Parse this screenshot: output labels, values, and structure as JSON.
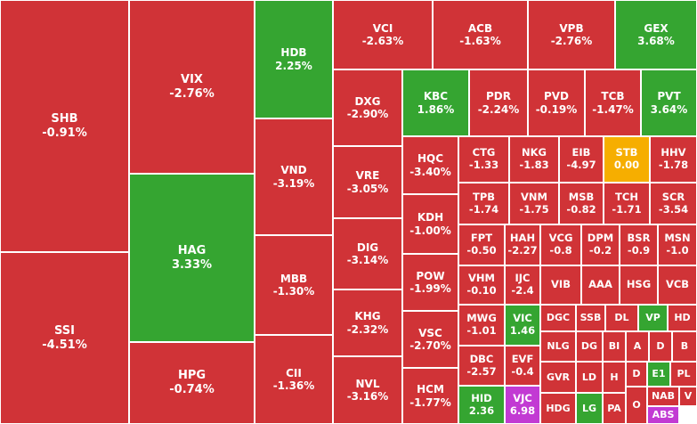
{
  "colors": {
    "down": "#d03337",
    "up": "#35a531",
    "flat": "#f6ae00",
    "ceiling": "#c23ad3"
  },
  "chart_data": {
    "type": "treemap",
    "tiles": [
      {
        "symbol": "SHB",
        "change": "-0.91%",
        "status": "down"
      },
      {
        "symbol": "SSI",
        "change": "-4.51%",
        "status": "down"
      },
      {
        "symbol": "VIX",
        "change": "-2.76%",
        "status": "down"
      },
      {
        "symbol": "HAG",
        "change": "3.33%",
        "status": "up"
      },
      {
        "symbol": "HPG",
        "change": "-0.74%",
        "status": "down"
      },
      {
        "symbol": "HDB",
        "change": "2.25%",
        "status": "up"
      },
      {
        "symbol": "VND",
        "change": "-3.19%",
        "status": "down"
      },
      {
        "symbol": "MBB",
        "change": "-1.30%",
        "status": "down"
      },
      {
        "symbol": "CII",
        "change": "-1.36%",
        "status": "down"
      },
      {
        "symbol": "VCI",
        "change": "-2.63%",
        "status": "down"
      },
      {
        "symbol": "ACB",
        "change": "-1.63%",
        "status": "down"
      },
      {
        "symbol": "VPB",
        "change": "-2.76%",
        "status": "down"
      },
      {
        "symbol": "GEX",
        "change": "3.68%",
        "status": "up"
      },
      {
        "symbol": "DXG",
        "change": "-2.90%",
        "status": "down"
      },
      {
        "symbol": "VRE",
        "change": "-3.05%",
        "status": "down"
      },
      {
        "symbol": "DIG",
        "change": "-3.14%",
        "status": "down"
      },
      {
        "symbol": "KHG",
        "change": "-2.32%",
        "status": "down"
      },
      {
        "symbol": "NVL",
        "change": "-3.16%",
        "status": "down"
      },
      {
        "symbol": "KBC",
        "change": "1.86%",
        "status": "up"
      },
      {
        "symbol": "PDR",
        "change": "-2.24%",
        "status": "down"
      },
      {
        "symbol": "PVD",
        "change": "-0.19%",
        "status": "down"
      },
      {
        "symbol": "TCB",
        "change": "-1.47%",
        "status": "down"
      },
      {
        "symbol": "PVT",
        "change": "3.64%",
        "status": "up"
      },
      {
        "symbol": "HQC",
        "change": "-3.40%",
        "status": "down"
      },
      {
        "symbol": "KDH",
        "change": "-1.00%",
        "status": "down"
      },
      {
        "symbol": "POW",
        "change": "-1.99%",
        "status": "down"
      },
      {
        "symbol": "VSC",
        "change": "-2.70%",
        "status": "down"
      },
      {
        "symbol": "HCM",
        "change": "-1.77%",
        "status": "down"
      },
      {
        "symbol": "CTG",
        "change": "-1.33",
        "status": "down"
      },
      {
        "symbol": "NKG",
        "change": "-1.83",
        "status": "down"
      },
      {
        "symbol": "EIB",
        "change": "-4.97",
        "status": "down"
      },
      {
        "symbol": "STB",
        "change": "0.00",
        "status": "flat"
      },
      {
        "symbol": "HHV",
        "change": "-1.78",
        "status": "down"
      },
      {
        "symbol": "TPB",
        "change": "-1.74",
        "status": "down"
      },
      {
        "symbol": "VNM",
        "change": "-1.75",
        "status": "down"
      },
      {
        "symbol": "MSB",
        "change": "-0.82",
        "status": "down"
      },
      {
        "symbol": "TCH",
        "change": "-1.71",
        "status": "down"
      },
      {
        "symbol": "SCR",
        "change": "-3.54",
        "status": "down"
      },
      {
        "symbol": "FPT",
        "change": "-0.50",
        "status": "down"
      },
      {
        "symbol": "HAH",
        "change": "-2.27",
        "status": "down"
      },
      {
        "symbol": "VCG",
        "change": "-0.8",
        "status": "down"
      },
      {
        "symbol": "DPM",
        "change": "-0.2",
        "status": "down"
      },
      {
        "symbol": "BSR",
        "change": "-0.9",
        "status": "down"
      },
      {
        "symbol": "MSN",
        "change": "-1.0",
        "status": "down"
      },
      {
        "symbol": "VHM",
        "change": "-0.10",
        "status": "down"
      },
      {
        "symbol": "IJC",
        "change": "-2.4",
        "status": "down"
      },
      {
        "symbol": "VIB",
        "change": "",
        "status": "down"
      },
      {
        "symbol": "AAA",
        "change": "",
        "status": "down"
      },
      {
        "symbol": "HSG",
        "change": "",
        "status": "down"
      },
      {
        "symbol": "VCB",
        "change": "",
        "status": "down"
      },
      {
        "symbol": "MWG",
        "change": "-1.01",
        "status": "down"
      },
      {
        "symbol": "VIC",
        "change": "1.46",
        "status": "up"
      },
      {
        "symbol": "DGC",
        "change": "",
        "status": "down"
      },
      {
        "symbol": "SSB",
        "change": "",
        "status": "down"
      },
      {
        "symbol": "DL",
        "change": "",
        "status": "down"
      },
      {
        "symbol": "VP",
        "change": "",
        "status": "up"
      },
      {
        "symbol": "HD",
        "change": "",
        "status": "down"
      },
      {
        "symbol": "DBC",
        "change": "-2.57",
        "status": "down"
      },
      {
        "symbol": "EVF",
        "change": "-0.4",
        "status": "down"
      },
      {
        "symbol": "NLG",
        "change": "",
        "status": "down"
      },
      {
        "symbol": "DG",
        "change": "",
        "status": "down"
      },
      {
        "symbol": "BI",
        "change": "",
        "status": "down"
      },
      {
        "symbol": "A",
        "change": "",
        "status": "down"
      },
      {
        "symbol": "D",
        "change": "",
        "status": "down"
      },
      {
        "symbol": "B",
        "change": "",
        "status": "down"
      },
      {
        "symbol": "GVR",
        "change": "",
        "status": "down"
      },
      {
        "symbol": "LD",
        "change": "",
        "status": "down"
      },
      {
        "symbol": "H",
        "change": "",
        "status": "down"
      },
      {
        "symbol": "D",
        "change": "",
        "status": "down"
      },
      {
        "symbol": "E1",
        "change": "",
        "status": "up"
      },
      {
        "symbol": "PL",
        "change": "",
        "status": "down"
      },
      {
        "symbol": "HID",
        "change": "2.36",
        "status": "up"
      },
      {
        "symbol": "VJC",
        "change": "6.98",
        "status": "ceiling"
      },
      {
        "symbol": "HDG",
        "change": "",
        "status": "down"
      },
      {
        "symbol": "LG",
        "change": "",
        "status": "up"
      },
      {
        "symbol": "PA",
        "change": "",
        "status": "down"
      },
      {
        "symbol": "O",
        "change": "",
        "status": "down"
      },
      {
        "symbol": "NAB",
        "change": "",
        "status": "down"
      },
      {
        "symbol": "V",
        "change": "",
        "status": "down"
      },
      {
        "symbol": "ABS",
        "change": "",
        "status": "ceiling"
      }
    ]
  }
}
